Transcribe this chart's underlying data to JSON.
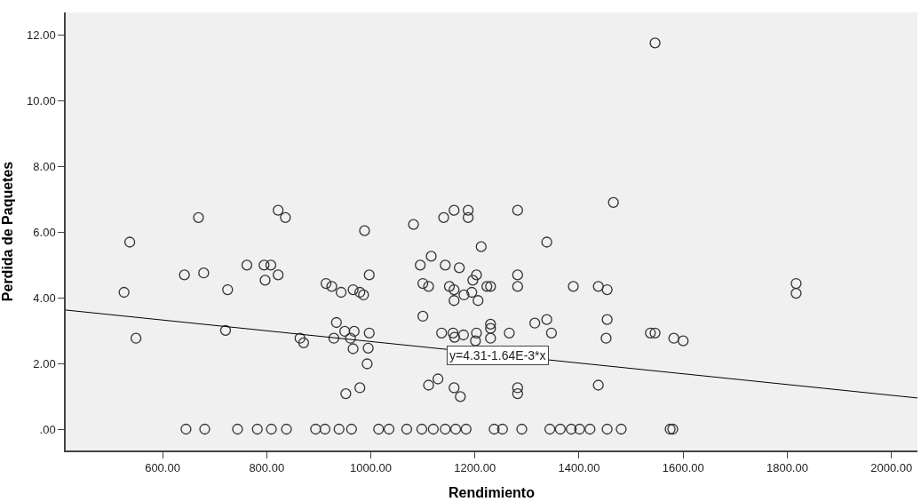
{
  "chart_data": {
    "type": "scatter",
    "xlabel": "Rendimiento",
    "ylabel": "Perdida de Paquetes",
    "xlim": [
      414,
      2050
    ],
    "ylim": [
      -0.65,
      12.7
    ],
    "xticks": [
      {
        "value": 600,
        "label": "600.00"
      },
      {
        "value": 800,
        "label": "800.00"
      },
      {
        "value": 1000,
        "label": "1000.00"
      },
      {
        "value": 1200,
        "label": "1200.00"
      },
      {
        "value": 1400,
        "label": "1400.00"
      },
      {
        "value": 1600,
        "label": "1600.00"
      },
      {
        "value": 1800,
        "label": "1800.00"
      },
      {
        "value": 2000,
        "label": "2000.00"
      }
    ],
    "yticks": [
      {
        "value": 0,
        "label": ".00"
      },
      {
        "value": 2,
        "label": "2.00"
      },
      {
        "value": 4,
        "label": "4.00"
      },
      {
        "value": 6,
        "label": "6.00"
      },
      {
        "value": 8,
        "label": "8.00"
      },
      {
        "value": 10,
        "label": "10.00"
      },
      {
        "value": 12,
        "label": "12.00"
      }
    ],
    "grid": false,
    "marker": "circle",
    "series": [
      {
        "color": "#333333",
        "x": [
          645,
          681,
          744,
          782,
          809,
          838,
          894,
          912,
          939,
          963,
          1015,
          1035,
          1069,
          1098,
          1120,
          1143,
          1163,
          1183,
          1237,
          1253,
          1290,
          1344,
          1364,
          1385,
          1401,
          1421,
          1454,
          1481,
          1580,
          537,
          526,
          549,
          669,
          642,
          679,
          725,
          721,
          762,
          795,
          808,
          797,
          822,
          822,
          836,
          864,
          871,
          914,
          925,
          943,
          966,
          979,
          986,
          988,
          997,
          934,
          950,
          968,
          997,
          929,
          961,
          966,
          995,
          993,
          979,
          952,
          1466,
          1282,
          1160,
          1187,
          1140,
          1187,
          1082,
          1338,
          1212,
          1116,
          1095,
          1143,
          1170,
          1203,
          1282,
          1196,
          1100,
          1111,
          1151,
          1160,
          1223,
          1230,
          1282,
          1389,
          1437,
          1454,
          1194,
          1179,
          1206,
          1160,
          1100,
          1230,
          1230,
          1315,
          1338,
          1454,
          1136,
          1158,
          1178,
          1203,
          1266,
          1347,
          1161,
          1230,
          1201,
          1452,
          1537,
          1129,
          1111,
          1160,
          1172,
          1282,
          1282,
          1437,
          1546,
          1817,
          1817,
          1546,
          1582,
          1600,
          1575
        ],
        "values": [
          0,
          0,
          0,
          0,
          0,
          0,
          0,
          0,
          0,
          0,
          0,
          0,
          0,
          0,
          0,
          0,
          0,
          0,
          0,
          0,
          0,
          0,
          0,
          0,
          0,
          0,
          0,
          0,
          0,
          5.7,
          4.17,
          2.77,
          6.45,
          4.7,
          4.76,
          4.25,
          3.01,
          5.0,
          5.0,
          5.0,
          4.54,
          4.7,
          6.67,
          6.45,
          2.77,
          2.63,
          4.44,
          4.35,
          4.17,
          4.25,
          4.17,
          4.09,
          6.05,
          4.7,
          3.25,
          2.98,
          2.98,
          2.93,
          2.77,
          2.77,
          2.45,
          2.47,
          1.99,
          1.26,
          1.08,
          6.91,
          6.67,
          6.67,
          6.67,
          6.45,
          6.45,
          6.24,
          5.7,
          5.56,
          5.27,
          5.0,
          5.0,
          4.92,
          4.7,
          4.7,
          4.54,
          4.44,
          4.35,
          4.35,
          4.25,
          4.35,
          4.35,
          4.35,
          4.35,
          4.35,
          4.25,
          4.17,
          4.09,
          3.92,
          3.92,
          3.44,
          3.2,
          3.07,
          3.23,
          3.34,
          3.34,
          2.93,
          2.93,
          2.87,
          2.93,
          2.93,
          2.93,
          2.8,
          2.77,
          2.69,
          2.77,
          2.93,
          1.53,
          1.34,
          1.26,
          0.99,
          1.26,
          1.08,
          1.34,
          11.77,
          4.44,
          4.14,
          2.93,
          2.77,
          2.69,
          0
        ]
      },
      {
        "type": "line",
        "color": "#000000",
        "marker": "none",
        "x": [
          414,
          2050
        ],
        "values": [
          3.63,
          0.95
        ]
      }
    ],
    "annotations": [
      {
        "text": "y=4.31-1.64E-3*x",
        "x": 1244,
        "y": 2.26
      }
    ]
  }
}
